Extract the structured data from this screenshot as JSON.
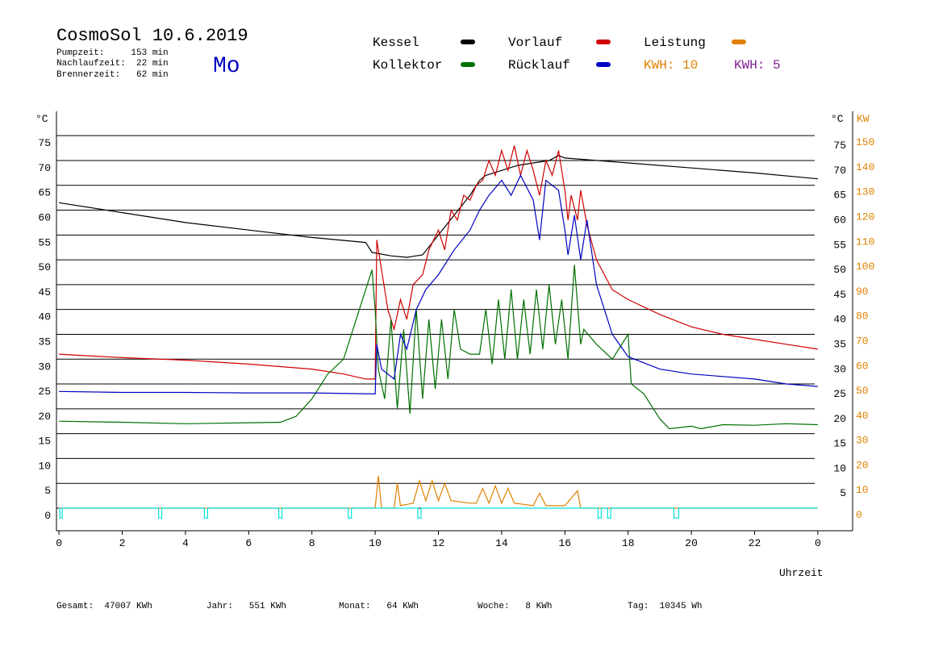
{
  "header": {
    "title": "CosmoSol 10.6.2019",
    "day": "Mo",
    "info": [
      "Pumpzeit:     153 min",
      "Nachlaufzeit:  22 min",
      "Brennerzeit:   62 min"
    ]
  },
  "legend_extra": [
    {
      "label": "KWH: 10",
      "color": "#e08000"
    },
    {
      "label": "KWH: 5",
      "color": "#802090"
    }
  ],
  "footer": [
    "Gesamt:  47007 KWh",
    "Jahr:   551 KWh",
    "Monat:   64 KWh",
    "Woche:   8 KWh",
    "Tag:  10345 Wh"
  ],
  "chart_data": {
    "type": "line",
    "ylabel": "°C",
    "y2label": "KW",
    "y2label_unit": "°C",
    "xlabel": "Uhrzeit",
    "xlim": [
      -0.08,
      25.1
    ],
    "xticks": [
      0,
      2,
      4,
      6,
      8,
      10,
      12,
      14,
      16,
      18,
      20,
      22,
      {
        "value": 24,
        "label": "0"
      }
    ],
    "ylim": [
      -4.55,
      79.9
    ],
    "yticks": [
      0,
      5,
      10,
      15,
      20,
      25,
      30,
      35,
      40,
      45,
      50,
      55,
      60,
      65,
      70,
      75
    ],
    "yticks_right": [
      5,
      10,
      15,
      20,
      25,
      30,
      35,
      40,
      45,
      50,
      55,
      60,
      65,
      70,
      75
    ],
    "y2lim": [
      -9.1,
      159.8
    ],
    "y2ticks": [
      0,
      10,
      20,
      30,
      40,
      50,
      60,
      70,
      80,
      90,
      100,
      110,
      120,
      130,
      140,
      150
    ],
    "grid": true,
    "series": [
      {
        "name": "Kessel",
        "color": "#000000",
        "x": [
          0,
          2,
          4,
          6,
          8,
          9.7,
          9.9,
          10.5,
          11,
          11.5,
          12,
          12.5,
          13,
          13.3,
          13.5,
          14,
          14.5,
          15,
          15.5,
          15.8,
          16,
          18,
          20,
          22,
          24
        ],
        "values": [
          61.5,
          59.5,
          57.5,
          56,
          54.5,
          53.5,
          51.5,
          50.8,
          50.5,
          51,
          55,
          59,
          63,
          66,
          67,
          68,
          69,
          69.5,
          70,
          71,
          70.5,
          69.5,
          68.5,
          67.5,
          66.3
        ]
      },
      {
        "name": "Vorlauf",
        "color": "#d00000",
        "x": [
          0,
          2,
          4,
          6,
          8,
          9,
          9.7,
          10,
          10.05,
          10.2,
          10.4,
          10.6,
          10.8,
          11,
          11.2,
          11.5,
          11.7,
          12,
          12.2,
          12.4,
          12.6,
          12.8,
          13,
          13.2,
          13.4,
          13.6,
          13.8,
          14,
          14.2,
          14.4,
          14.6,
          14.8,
          15,
          15.2,
          15.4,
          15.6,
          15.8,
          16,
          16.1,
          16.2,
          16.4,
          16.5,
          16.7,
          17,
          17.5,
          18,
          19,
          20,
          21,
          22,
          23,
          24
        ],
        "values": [
          31,
          30.3,
          29.8,
          29,
          28,
          27,
          26,
          26,
          54,
          48,
          40,
          36,
          42,
          38,
          45,
          47,
          52,
          56,
          52,
          60,
          58,
          63,
          62,
          65,
          66,
          70,
          67,
          72,
          68,
          73,
          67,
          72,
          68,
          63,
          70,
          67,
          72,
          64,
          58,
          63,
          58,
          64,
          57,
          50,
          44,
          42,
          39,
          36.5,
          35,
          34,
          33,
          32
        ]
      },
      {
        "name": "Leistung",
        "color": "#e08000",
        "axis": "y2",
        "x": [
          0,
          10,
          10.1,
          10.2,
          10.6,
          10.7,
          10.8,
          11.2,
          11.4,
          11.6,
          11.8,
          12,
          12.2,
          12.4,
          13,
          13.2,
          13.4,
          13.6,
          13.8,
          14,
          14.2,
          14.4,
          15,
          15.2,
          15.4,
          16,
          16.4,
          16.5,
          24
        ],
        "values": [
          0,
          0,
          13,
          0,
          0,
          10,
          1,
          2,
          11,
          3,
          11,
          3,
          10,
          3,
          2,
          2,
          8,
          2,
          9,
          2,
          8,
          2,
          1,
          6,
          1,
          1,
          7,
          0,
          0
        ]
      },
      {
        "name": "Kollektor",
        "color": "#007000",
        "x": [
          0,
          2,
          4,
          6,
          7,
          7.5,
          8,
          8.5,
          9,
          9.5,
          9.9,
          10,
          10.1,
          10.3,
          10.5,
          10.7,
          10.9,
          11.1,
          11.3,
          11.5,
          11.7,
          11.9,
          12.1,
          12.3,
          12.5,
          12.7,
          13,
          13.3,
          13.5,
          13.7,
          13.9,
          14.1,
          14.3,
          14.5,
          14.7,
          14.9,
          15.1,
          15.3,
          15.5,
          15.7,
          15.9,
          16.1,
          16.3,
          16.5,
          16.6,
          17,
          17.5,
          18,
          18.1,
          18.5,
          19,
          19.3,
          20,
          20.3,
          21,
          22,
          23,
          24
        ],
        "values": [
          17.5,
          17.3,
          17,
          17.2,
          17.3,
          18.5,
          22,
          27,
          30,
          40,
          48,
          40,
          28,
          22,
          38,
          20,
          36,
          19,
          40,
          22,
          38,
          24,
          38,
          26,
          40,
          32,
          31,
          31,
          40,
          29,
          42,
          30,
          44,
          30,
          42,
          31,
          44,
          32,
          45,
          33,
          42,
          30,
          49,
          33,
          36,
          33,
          30,
          35,
          25,
          23,
          18,
          16,
          16.5,
          16,
          16.8,
          16.7,
          17,
          16.8
        ]
      },
      {
        "name": "Rücklauf",
        "color": "#0000c0",
        "x": [
          0,
          2,
          4,
          6,
          8,
          10,
          10.05,
          10.2,
          10.6,
          10.8,
          11,
          11.3,
          11.6,
          12,
          12.5,
          13,
          13.3,
          13.6,
          14,
          14.3,
          14.6,
          15,
          15.2,
          15.4,
          15.8,
          16,
          16.1,
          16.3,
          16.5,
          16.7,
          17,
          17.5,
          18,
          19,
          20,
          21,
          22,
          23,
          24
        ],
        "values": [
          23.5,
          23.3,
          23.3,
          23.2,
          23.2,
          23,
          33,
          28,
          26,
          35,
          32,
          40,
          44,
          47,
          52,
          56,
          60,
          63,
          66,
          63,
          67,
          62,
          54,
          66,
          64,
          56,
          51,
          59,
          50,
          58,
          45,
          35,
          30.5,
          28,
          27,
          26.5,
          26,
          25,
          24.5
        ]
      },
      {
        "color": "#00e0e0",
        "x": [
          0,
          0.03,
          0.03,
          0.1,
          0.1,
          3.15,
          3.15,
          3.25,
          3.25,
          4.6,
          4.6,
          4.7,
          4.7,
          6.95,
          6.95,
          7.05,
          7.05,
          9.15,
          9.15,
          9.25,
          9.25,
          11.35,
          11.35,
          11.45,
          11.45,
          17.05,
          17.05,
          17.15,
          17.15,
          17.35,
          17.35,
          17.45,
          17.45,
          19.45,
          19.45,
          19.6,
          19.6,
          24
        ],
        "values": [
          0,
          0,
          -2,
          -2,
          0,
          0,
          -2,
          -2,
          0,
          0,
          -2,
          -2,
          0,
          0,
          -2,
          -2,
          0,
          0,
          -2,
          -2,
          0,
          0,
          -2,
          -2,
          0,
          0,
          -2,
          -2,
          0,
          0,
          -2,
          -2,
          0,
          0,
          -2,
          -2,
          0,
          0
        ]
      }
    ]
  }
}
